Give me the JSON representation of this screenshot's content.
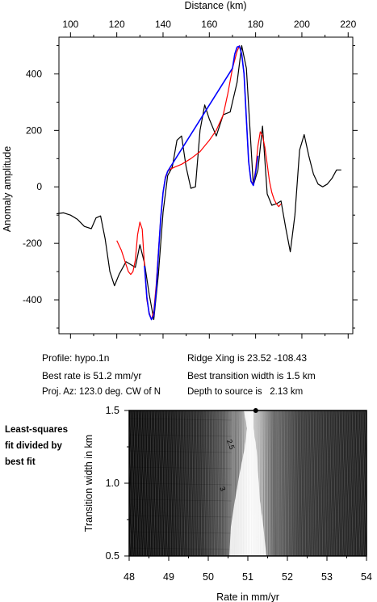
{
  "top_chart": {
    "xlabel": "Distance (km)",
    "ylabel": "Anomaly amplitude",
    "x_ticks": [
      100,
      120,
      140,
      160,
      180,
      200,
      220
    ],
    "y_ticks": [
      -400,
      -200,
      0,
      200,
      400
    ],
    "colors": {
      "observed": "#000000",
      "model": "#ff0000",
      "fit": "#0000ff"
    }
  },
  "info": {
    "profile": "Profile: hypo.1n",
    "best_rate": "Best rate is 51.2 mm/yr",
    "proj_az": "Proj. Az: 123.0 deg. CW of N",
    "ridge_xing": "Ridge Xing is 23.52 -108.43",
    "best_width": "Best transition width is 1.5 km",
    "depth": "Depth to source is   2.13 km"
  },
  "side_note": "Least-squares\nfit divided by\nbest fit",
  "bottom_chart": {
    "xlabel": "Rate in mm/yr",
    "ylabel": "Transition width in km",
    "x_ticks": [
      "48",
      "49",
      "50",
      "51",
      "52",
      "53",
      "54"
    ],
    "y_ticks": [
      "0.5",
      "1.0",
      "1.5"
    ],
    "contour_labels": [
      "2.5",
      "3"
    ],
    "best_point": {
      "rate": 51.2,
      "width": 1.5
    }
  },
  "chart_data": [
    {
      "type": "line",
      "xlabel": "Distance (km)",
      "ylabel": "Anomaly amplitude",
      "xlim": [
        95,
        222
      ],
      "ylim": [
        -520,
        530
      ],
      "series": [
        {
          "x": [
            94,
            97,
            100,
            103,
            106,
            109,
            111,
            113,
            115,
            117,
            119,
            121,
            124,
            126,
            128,
            130,
            132,
            134,
            136,
            138,
            140,
            142,
            144,
            146,
            148,
            150,
            152,
            154,
            156,
            158,
            160,
            163,
            166,
            169,
            172,
            174,
            176,
            179,
            181,
            183,
            185,
            187,
            189,
            191,
            193,
            195,
            197,
            199,
            201,
            203,
            205,
            207,
            209,
            211,
            213,
            215,
            217
          ],
          "y": [
            -95,
            -92,
            -100,
            -115,
            -140,
            -148,
            -110,
            -103,
            -185,
            -300,
            -350,
            -310,
            -265,
            -275,
            -285,
            -205,
            -270,
            -380,
            -470,
            -310,
            -90,
            40,
            70,
            165,
            180,
            70,
            -5,
            0,
            200,
            290,
            240,
            180,
            255,
            265,
            370,
            500,
            420,
            5,
            60,
            215,
            -25,
            -65,
            -60,
            -50,
            -145,
            -230,
            -100,
            130,
            185,
            110,
            45,
            10,
            0,
            10,
            30,
            60,
            60
          ]
        },
        {
          "x": [
            120,
            122,
            124,
            125,
            126,
            127,
            128,
            129,
            130,
            131,
            132,
            133,
            134,
            135,
            136,
            137,
            138,
            139,
            140,
            141,
            142,
            143,
            145,
            148,
            152,
            156,
            160,
            163,
            166,
            168,
            170,
            172,
            173,
            174,
            175,
            176,
            177,
            178,
            179,
            180,
            181,
            182,
            183,
            184,
            185,
            186,
            187,
            188,
            189,
            190,
            191
          ],
          "y": [
            -190,
            -225,
            -275,
            -300,
            -310,
            -300,
            -260,
            -170,
            -125,
            -150,
            -280,
            -400,
            -445,
            -470,
            -440,
            -350,
            -230,
            -110,
            -20,
            35,
            55,
            62,
            70,
            80,
            100,
            125,
            165,
            200,
            255,
            330,
            420,
            480,
            500,
            470,
            400,
            240,
            90,
            20,
            10,
            60,
            145,
            195,
            180,
            140,
            80,
            20,
            -20,
            -45,
            -60,
            -70,
            -60
          ]
        },
        {
          "x": [
            132,
            133,
            134,
            135,
            136,
            137,
            138,
            139,
            140,
            141,
            142,
            170,
            171,
            172,
            173,
            174,
            175,
            176,
            177,
            178,
            179,
            180,
            181
          ],
          "y": [
            -280,
            -390,
            -450,
            -470,
            -455,
            -370,
            -240,
            -110,
            -20,
            30,
            55,
            420,
            470,
            495,
            498,
            470,
            400,
            240,
            90,
            20,
            5,
            50,
            110
          ]
        }
      ]
    },
    {
      "type": "heatmap",
      "title": "Least-squares fit divided by best fit",
      "xlabel": "Rate in mm/yr",
      "ylabel": "Transition width in km",
      "xlim": [
        48,
        54
      ],
      "ylim": [
        0.5,
        1.5
      ],
      "contour_labels": [
        "2.5",
        "3"
      ],
      "best_point": {
        "rate": 51.2,
        "width": 1.5
      }
    }
  ]
}
